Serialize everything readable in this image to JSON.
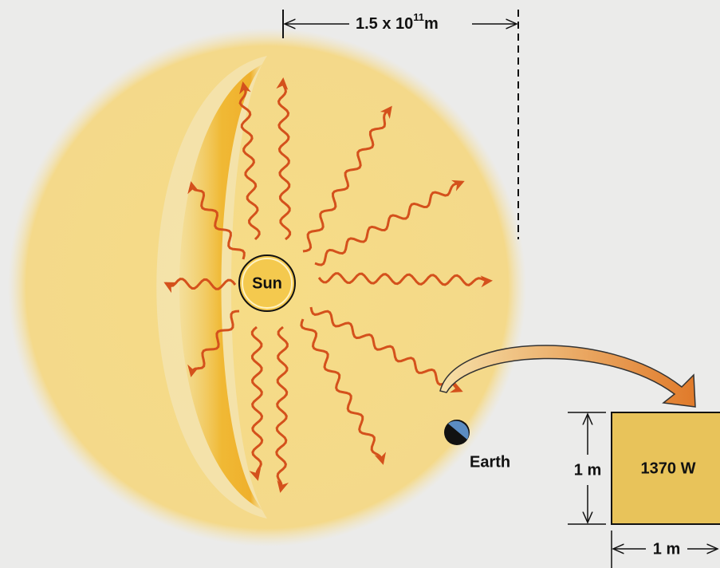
{
  "distance_label": {
    "base": "1.5 x 10",
    "exponent": "11",
    "unit": "m"
  },
  "sun_label": "Sun",
  "earth_label": "Earth",
  "panel": {
    "power_label": "1370 W",
    "height_label": "1 m",
    "width_label": "1 m"
  }
}
